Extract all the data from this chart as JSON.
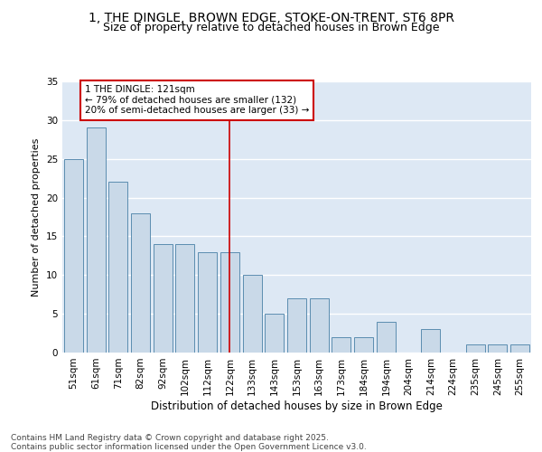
{
  "title1": "1, THE DINGLE, BROWN EDGE, STOKE-ON-TRENT, ST6 8PR",
  "title2": "Size of property relative to detached houses in Brown Edge",
  "xlabel": "Distribution of detached houses by size in Brown Edge",
  "ylabel": "Number of detached properties",
  "categories": [
    "51sqm",
    "61sqm",
    "71sqm",
    "82sqm",
    "92sqm",
    "102sqm",
    "112sqm",
    "122sqm",
    "133sqm",
    "143sqm",
    "153sqm",
    "163sqm",
    "173sqm",
    "184sqm",
    "194sqm",
    "204sqm",
    "214sqm",
    "224sqm",
    "235sqm",
    "245sqm",
    "255sqm"
  ],
  "values": [
    25,
    29,
    22,
    18,
    14,
    14,
    13,
    13,
    10,
    5,
    7,
    7,
    2,
    2,
    4,
    0,
    3,
    0,
    1,
    1,
    1
  ],
  "bar_color": "#c9d9e8",
  "bar_edge_color": "#5b8db0",
  "bar_linewidth": 0.7,
  "red_line_index": 7,
  "annotation_text": "1 THE DINGLE: 121sqm\n← 79% of detached houses are smaller (132)\n20% of semi-detached houses are larger (33) →",
  "annotation_box_color": "#ffffff",
  "annotation_border_color": "#cc0000",
  "background_color": "#dde8f4",
  "grid_color": "#ffffff",
  "fig_background": "#ffffff",
  "footer_text": "Contains HM Land Registry data © Crown copyright and database right 2025.\nContains public sector information licensed under the Open Government Licence v3.0.",
  "ylim": [
    0,
    35
  ],
  "yticks": [
    0,
    5,
    10,
    15,
    20,
    25,
    30,
    35
  ],
  "title1_fontsize": 10,
  "title2_fontsize": 9,
  "xlabel_fontsize": 8.5,
  "ylabel_fontsize": 8,
  "tick_fontsize": 7.5,
  "annotation_fontsize": 7.5,
  "footer_fontsize": 6.5
}
